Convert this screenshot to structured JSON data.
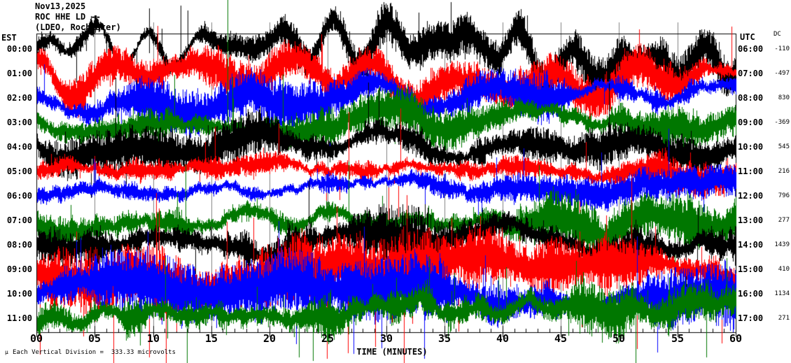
{
  "title": {
    "date": "Nov13,2025",
    "station": "ROC HHE LD --",
    "network": "(LDEO, Rochester)"
  },
  "left_axis": {
    "header": "EST"
  },
  "right_axis": {
    "header": "UTC",
    "dc_header": "DC"
  },
  "x_axis": {
    "label": "TIME (MINUTES)",
    "tick_labels": [
      "00",
      "05",
      "10",
      "15",
      "20",
      "25",
      "30",
      "35",
      "40",
      "45",
      "50",
      "55",
      "60"
    ]
  },
  "footnote": "Each Vertical Division =  333.33 microvolts",
  "watermark": "µ",
  "colors": {
    "black": "#000000",
    "red": "#ff0000",
    "blue": "#0000ff",
    "green": "#007700",
    "grid": "#808080",
    "frame": "#000000",
    "background": "#ffffff",
    "text": "#000000"
  },
  "chart_data": {
    "type": "line",
    "subtype": "helicorder-seismogram",
    "title": "ROC HHE LD -- (LDEO, Rochester) Nov13,2025",
    "xlabel": "TIME (MINUTES)",
    "x_range": [
      0,
      60
    ],
    "x_ticks": [
      0,
      5,
      10,
      15,
      20,
      25,
      30,
      35,
      40,
      45,
      50,
      55,
      60
    ],
    "x_minor_tick_minutes": 1,
    "grid": "vertical gray lines every 5 minutes",
    "legend": "none",
    "vertical_division_microvolts": 333.33,
    "trace_colors_cycle": [
      "#000000",
      "#ff0000",
      "#0000ff",
      "#007700"
    ],
    "rows": [
      {
        "est": "00:00",
        "utc": "06:00",
        "dc": -110,
        "color": "#000000"
      },
      {
        "est": "01:00",
        "utc": "07:00",
        "dc": -497,
        "color": "#ff0000"
      },
      {
        "est": "02:00",
        "utc": "08:00",
        "dc": 830,
        "color": "#0000ff"
      },
      {
        "est": "03:00",
        "utc": "09:00",
        "dc": -369,
        "color": "#007700"
      },
      {
        "est": "04:00",
        "utc": "10:00",
        "dc": 545,
        "color": "#000000"
      },
      {
        "est": "05:00",
        "utc": "11:00",
        "dc": 216,
        "color": "#ff0000"
      },
      {
        "est": "06:00",
        "utc": "12:00",
        "dc": 796,
        "color": "#0000ff"
      },
      {
        "est": "07:00",
        "utc": "13:00",
        "dc": 277,
        "color": "#007700"
      },
      {
        "est": "08:00",
        "utc": "14:00",
        "dc": 1439,
        "color": "#000000"
      },
      {
        "est": "09:00",
        "utc": "15:00",
        "dc": 410,
        "color": "#ff0000"
      },
      {
        "est": "10:00",
        "utc": "16:00",
        "dc": 1134,
        "color": "#0000ff"
      },
      {
        "est": "11:00",
        "utc": "17:00",
        "dc": 271,
        "color": "#007700"
      }
    ],
    "note": "Each row is one hour (60 min) of continuous high-frequency seismic noise; individual waveform sample values are dense random noise and not recoverable from the image."
  }
}
